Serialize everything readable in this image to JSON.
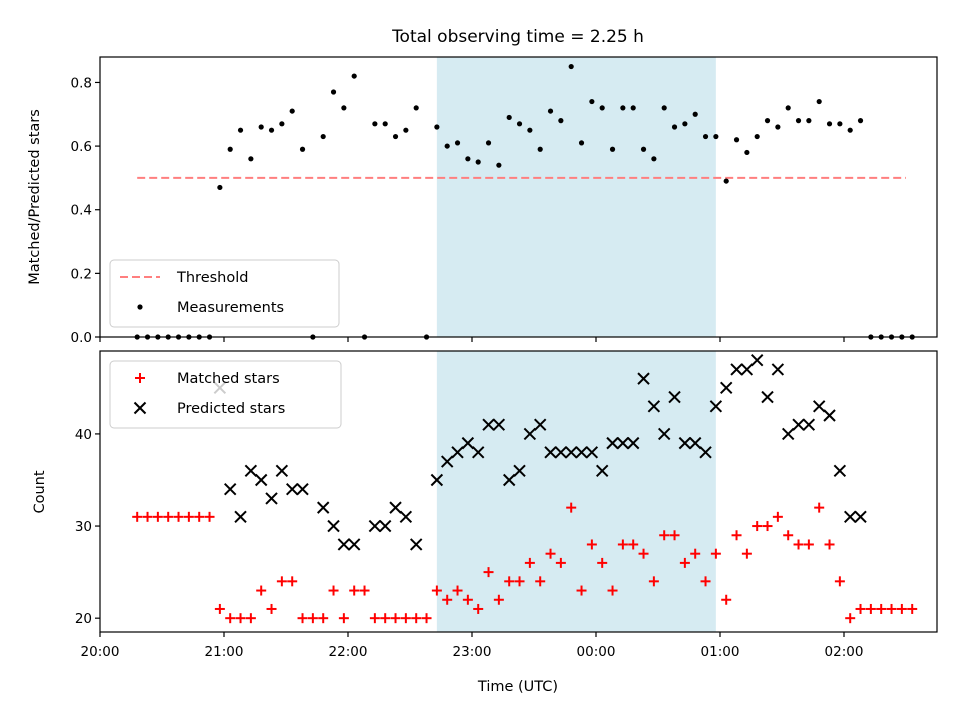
{
  "figure": {
    "title": "Total observing time = 2.25 h",
    "xlabel": "Time (UTC)",
    "x_ticks": [
      "20:00",
      "21:00",
      "22:00",
      "23:00",
      "00:00",
      "01:00",
      "02:00"
    ]
  },
  "colors": {
    "band": "#add8e6",
    "threshold": "#ff7f7f",
    "measurement": "#000000",
    "matched": "#ff0000",
    "predicted": "#000000"
  },
  "chart_data": [
    {
      "type": "scatter",
      "ylabel": "Matched/Predicted stars",
      "xlim": [
        "20:00",
        "02:45"
      ],
      "ylim": [
        0,
        0.88
      ],
      "y_ticks": [
        "0.0",
        "0.2",
        "0.4",
        "0.6",
        "0.8"
      ],
      "shaded_interval": [
        "22:43",
        "00:58"
      ],
      "legend": {
        "position": "lower-left",
        "entries": [
          "Threshold",
          "Measurements"
        ]
      },
      "threshold": {
        "name": "Threshold",
        "y": 0.5,
        "x_range": [
          "20:18",
          "02:30"
        ],
        "style": "dashed"
      },
      "series": [
        {
          "name": "Measurements",
          "x": [
            "20:18",
            "20:23",
            "20:28",
            "20:33",
            "20:38",
            "20:43",
            "20:48",
            "20:53",
            "20:58",
            "21:03",
            "21:08",
            "21:13",
            "21:18",
            "21:23",
            "21:28",
            "21:33",
            "21:38",
            "21:43",
            "21:48",
            "21:53",
            "21:58",
            "22:03",
            "22:08",
            "22:13",
            "22:18",
            "22:23",
            "22:28",
            "22:33",
            "22:38",
            "22:43",
            "22:48",
            "22:53",
            "22:58",
            "23:03",
            "23:08",
            "23:13",
            "23:18",
            "23:23",
            "23:28",
            "23:33",
            "23:38",
            "23:43",
            "23:48",
            "23:53",
            "23:58",
            "00:03",
            "00:08",
            "00:13",
            "00:18",
            "00:23",
            "00:28",
            "00:33",
            "00:38",
            "00:43",
            "00:48",
            "00:53",
            "00:58",
            "01:03",
            "01:08",
            "01:13",
            "01:18",
            "01:23",
            "01:28",
            "01:33",
            "01:38",
            "01:43",
            "01:48",
            "01:53",
            "01:58",
            "02:03",
            "02:08",
            "02:13",
            "02:18",
            "02:23",
            "02:28",
            "02:33"
          ],
          "y": [
            0,
            0,
            0,
            0,
            0,
            0,
            0,
            0,
            0.47,
            0.59,
            0.65,
            0.56,
            0.66,
            0.65,
            0.67,
            0.71,
            0.59,
            0,
            0.63,
            0.77,
            0.72,
            0.82,
            0,
            0.67,
            0.67,
            0.63,
            0.65,
            0.72,
            0,
            0.66,
            0.6,
            0.61,
            0.56,
            0.55,
            0.61,
            0.54,
            0.69,
            0.67,
            0.65,
            0.59,
            0.71,
            0.68,
            0.85,
            0.61,
            0.74,
            0.72,
            0.59,
            0.72,
            0.72,
            0.59,
            0.56,
            0.72,
            0.66,
            0.67,
            0.7,
            0.63,
            0.63,
            0.49,
            0.62,
            0.58,
            0.63,
            0.68,
            0.66,
            0.72,
            0.68,
            0.68,
            0.74,
            0.67,
            0.67,
            0.65,
            0.68,
            0,
            0,
            0,
            0,
            0
          ]
        }
      ]
    },
    {
      "type": "scatter",
      "ylabel": "Count",
      "xlim": [
        "20:00",
        "02:45"
      ],
      "ylim": [
        18.5,
        49
      ],
      "y_ticks": [
        "20",
        "30",
        "40"
      ],
      "shaded_interval": [
        "22:43",
        "00:58"
      ],
      "legend": {
        "position": "upper-left",
        "entries": [
          "Matched stars",
          "Predicted stars"
        ]
      },
      "series": [
        {
          "name": "Matched stars",
          "marker": "plus",
          "x": [
            "20:18",
            "20:23",
            "20:28",
            "20:33",
            "20:38",
            "20:43",
            "20:48",
            "20:53",
            "20:58",
            "21:03",
            "21:08",
            "21:13",
            "21:18",
            "21:23",
            "21:28",
            "21:33",
            "21:38",
            "21:43",
            "21:48",
            "21:53",
            "21:58",
            "22:03",
            "22:08",
            "22:13",
            "22:18",
            "22:23",
            "22:28",
            "22:33",
            "22:38",
            "22:43",
            "22:48",
            "22:53",
            "22:58",
            "23:03",
            "23:08",
            "23:13",
            "23:18",
            "23:23",
            "23:28",
            "23:33",
            "23:38",
            "23:43",
            "23:48",
            "23:53",
            "23:58",
            "00:03",
            "00:08",
            "00:13",
            "00:18",
            "00:23",
            "00:28",
            "00:33",
            "00:38",
            "00:43",
            "00:48",
            "00:53",
            "00:58",
            "01:03",
            "01:08",
            "01:13",
            "01:18",
            "01:23",
            "01:28",
            "01:33",
            "01:38",
            "01:43",
            "01:48",
            "01:53",
            "01:58",
            "02:03",
            "02:08",
            "02:13",
            "02:18",
            "02:23",
            "02:28",
            "02:33"
          ],
          "y": [
            31,
            31,
            31,
            31,
            31,
            31,
            31,
            31,
            21,
            20,
            20,
            20,
            23,
            21,
            24,
            24,
            20,
            20,
            20,
            23,
            20,
            23,
            23,
            20,
            20,
            20,
            20,
            20,
            20,
            23,
            22,
            23,
            22,
            21,
            25,
            22,
            24,
            24,
            26,
            24,
            27,
            26,
            32,
            23,
            28,
            26,
            23,
            28,
            28,
            27,
            24,
            29,
            29,
            26,
            27,
            24,
            27,
            22,
            29,
            27,
            30,
            30,
            31,
            29,
            28,
            28,
            32,
            28,
            24,
            20,
            21,
            21,
            21,
            21,
            21,
            21
          ]
        },
        {
          "name": "Predicted stars",
          "marker": "x",
          "x": [
            "20:58",
            "21:03",
            "21:08",
            "21:13",
            "21:18",
            "21:23",
            "21:28",
            "21:33",
            "21:38",
            "21:48",
            "21:53",
            "21:58",
            "22:03",
            "22:13",
            "22:18",
            "22:23",
            "22:28",
            "22:33",
            "22:43",
            "22:48",
            "22:53",
            "22:58",
            "23:03",
            "23:08",
            "23:13",
            "23:18",
            "23:23",
            "23:28",
            "23:33",
            "23:38",
            "23:43",
            "23:48",
            "23:53",
            "23:58",
            "00:03",
            "00:08",
            "00:13",
            "00:18",
            "00:23",
            "00:28",
            "00:33",
            "00:38",
            "00:43",
            "00:48",
            "00:53",
            "00:58",
            "01:03",
            "01:08",
            "01:13",
            "01:18",
            "01:23",
            "01:28",
            "01:33",
            "01:38",
            "01:43",
            "01:48",
            "01:53",
            "01:58",
            "02:03",
            "02:08"
          ],
          "y": [
            45,
            34,
            31,
            36,
            35,
            33,
            36,
            34,
            34,
            32,
            30,
            28,
            28,
            30,
            30,
            32,
            31,
            28,
            35,
            37,
            38,
            39,
            38,
            41,
            41,
            35,
            36,
            40,
            41,
            38,
            38,
            38,
            38,
            38,
            36,
            39,
            39,
            39,
            46,
            43,
            40,
            44,
            39,
            39,
            38,
            43,
            45,
            47,
            47,
            48,
            44,
            47,
            40,
            41,
            41,
            43,
            42,
            36,
            31,
            31
          ]
        }
      ]
    }
  ]
}
